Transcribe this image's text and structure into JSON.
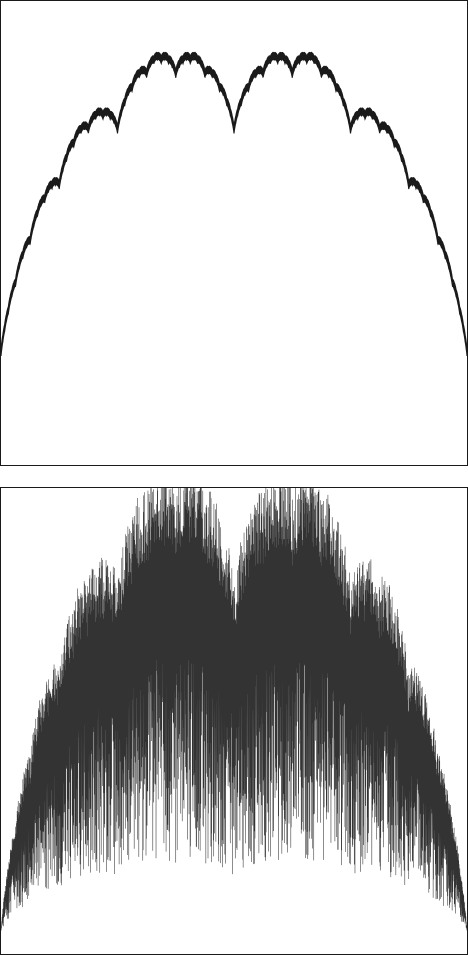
{
  "chart_data": [
    {
      "type": "line",
      "title": "",
      "xlabel": "",
      "ylabel": "",
      "series_style": "thick-band",
      "color": "#1a1a1a",
      "grid": false,
      "legend": "none",
      "generator": {
        "base": 2,
        "decay": 0.5,
        "terms": 12,
        "noise": 0.018,
        "samples": 1800
      },
      "xlim": [
        0,
        1
      ],
      "ylim": [
        -0.05,
        1.2
      ]
    },
    {
      "type": "line",
      "title": "",
      "xlabel": "",
      "ylabel": "",
      "series_style": "dense-oscillation",
      "color": "#333333",
      "grid": false,
      "legend": "none",
      "generator": {
        "base": 2,
        "decay": 0.5,
        "terms": 12,
        "noise": 0.22,
        "samples": 2600
      },
      "xlim": [
        0,
        1
      ],
      "ylim": [
        -0.05,
        1.2
      ]
    }
  ]
}
